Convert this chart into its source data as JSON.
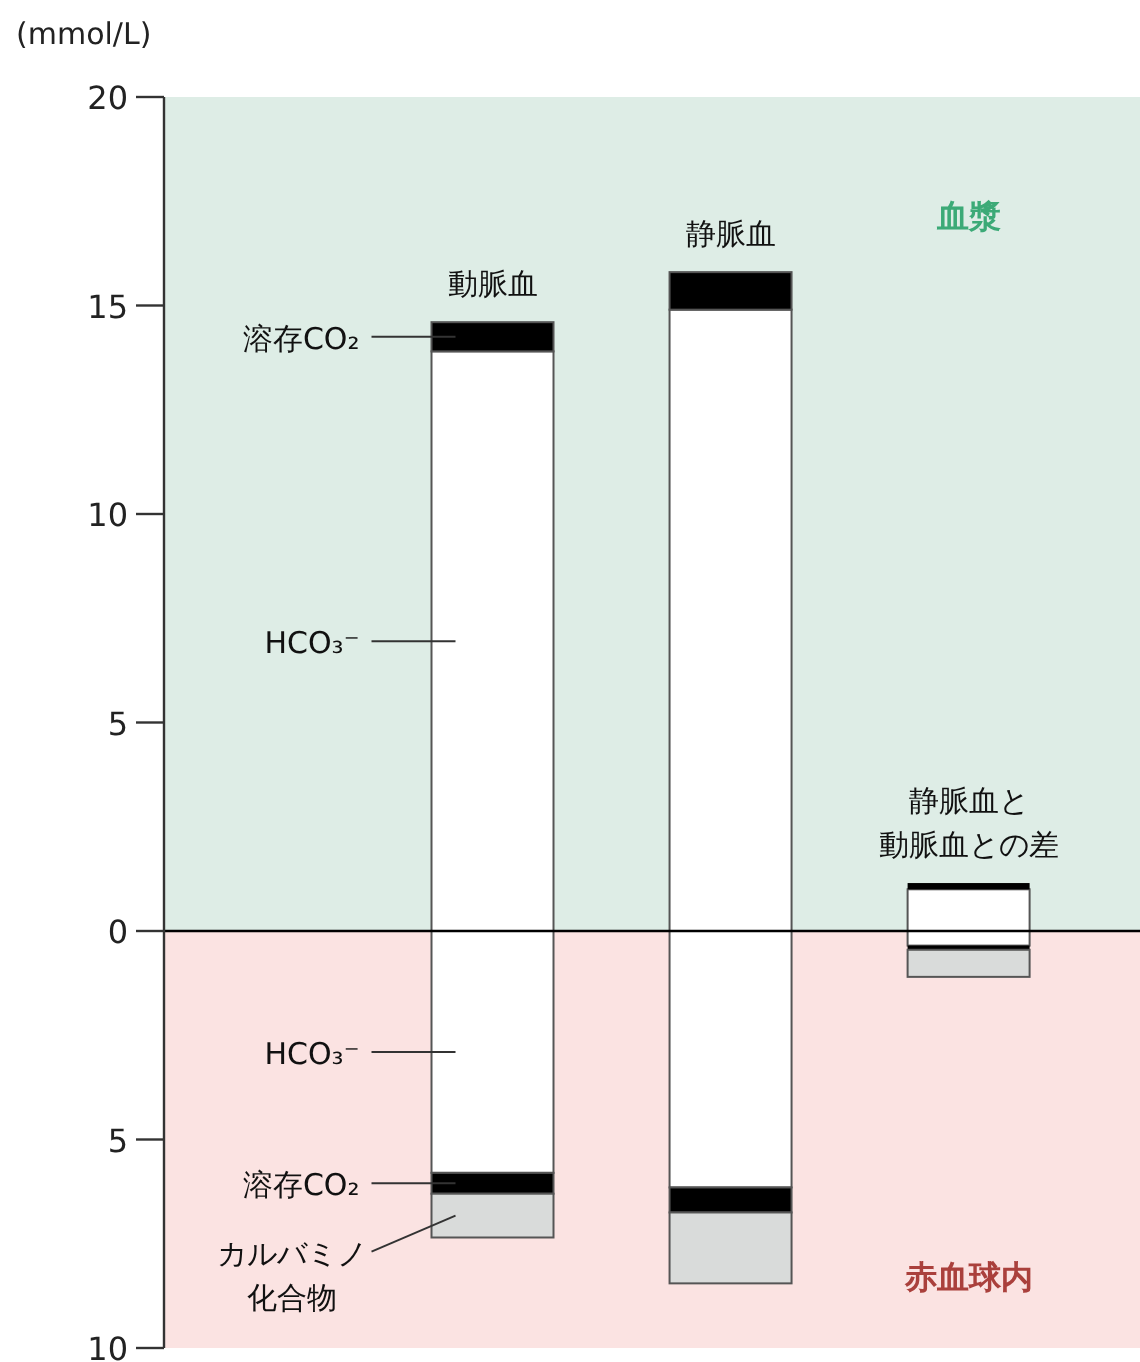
{
  "chart_data": {
    "type": "bar",
    "stacked": true,
    "ylabel": "(mmol/L)",
    "categories": [
      "動脈血",
      "静脈血",
      "静脈血と動脈血との差"
    ],
    "series": [
      {
        "name": "HCO₃⁻",
        "color": "#ffffff",
        "values": [
          13.9,
          14.9,
          1.0
        ]
      },
      {
        "name": "溶存CO₂",
        "color": "#000000",
        "values": [
          0.7,
          0.9,
          0.15
        ]
      },
      {
        "name": "HCO₃⁻",
        "color": "#ffffff",
        "values": [
          -5.8,
          -6.15,
          -0.35
        ]
      },
      {
        "name": "溶存CO₂",
        "color": "#000000",
        "values": [
          -0.5,
          -0.6,
          -0.1
        ]
      },
      {
        "name": "カルバミノ化合物",
        "color": "#d9dbda",
        "values": [
          -1.05,
          -1.7,
          -0.65
        ]
      }
    ],
    "ylim": [
      -10,
      20
    ],
    "yticks": [
      {
        "value": -10,
        "label": "10"
      },
      {
        "value": -5,
        "label": "5"
      },
      0,
      5,
      10,
      15,
      20
    ],
    "bands": [
      {
        "axis": "y",
        "from": 0,
        "to": 20,
        "label": "血漿",
        "color": "#deede6"
      },
      {
        "axis": "y",
        "from": -10,
        "to": 0,
        "label": "赤血球内",
        "color": "#fbe3e2"
      }
    ],
    "ref_lines": [
      {
        "axis": "y",
        "value": 0,
        "color": "#000000"
      }
    ],
    "legend": false
  }
}
